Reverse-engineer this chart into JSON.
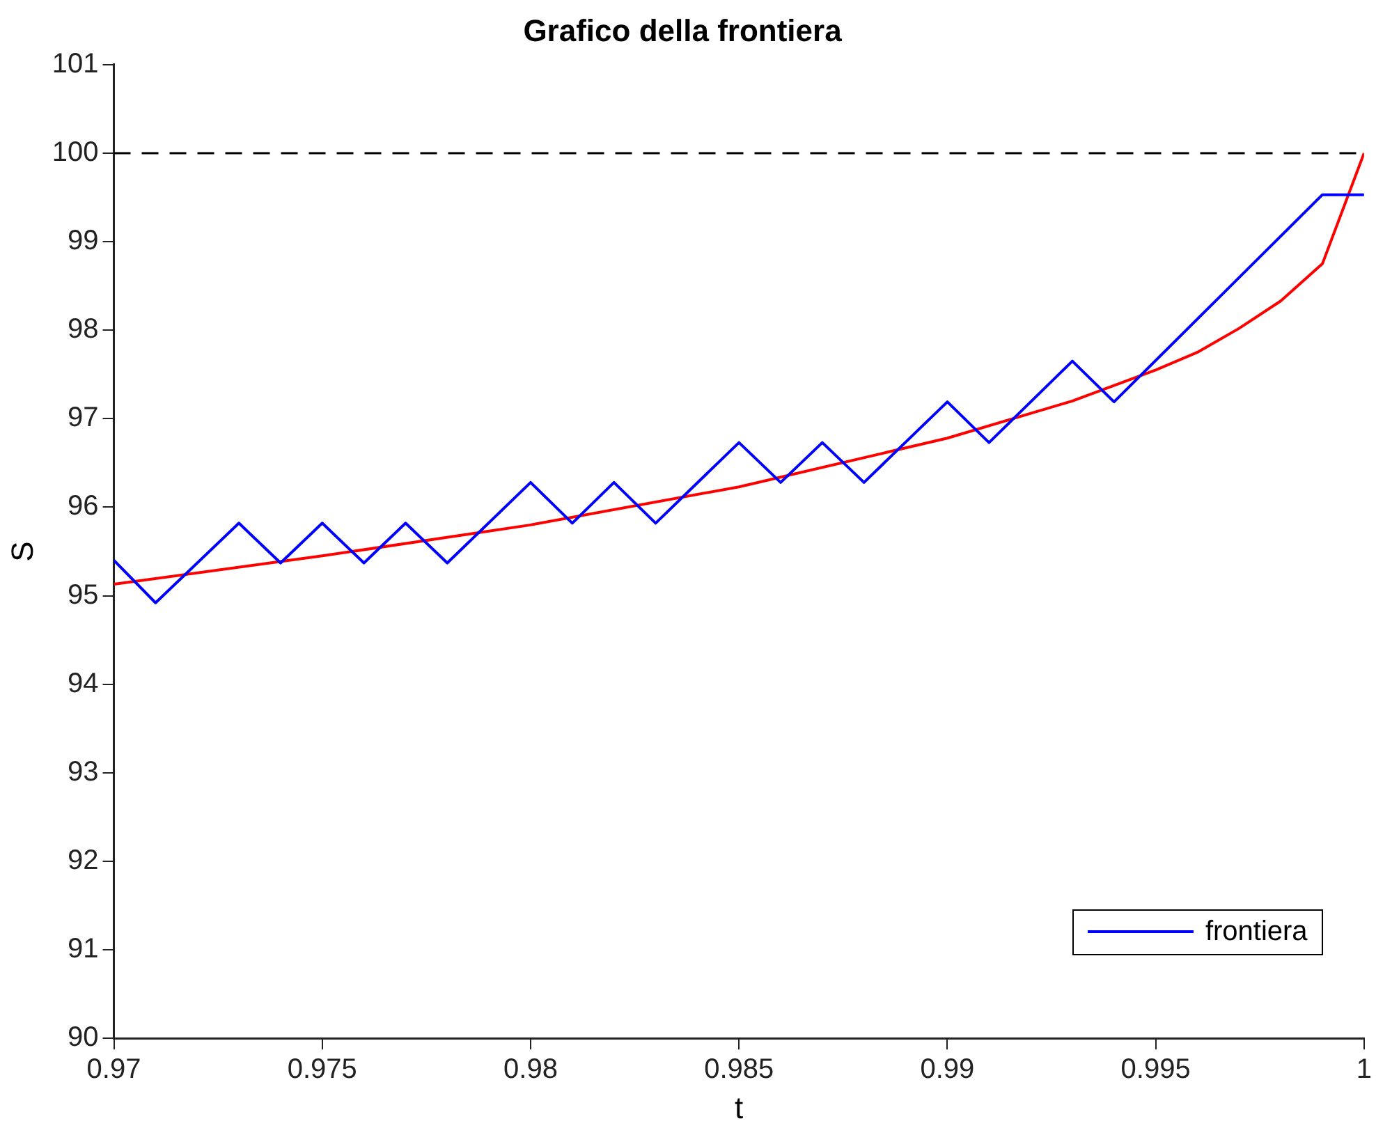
{
  "chart_data": {
    "type": "line",
    "title": "Grafico della frontiera",
    "xlabel": "t",
    "ylabel": "S",
    "xlim": [
      0.97,
      1
    ],
    "xticks": [
      0.97,
      0.975,
      0.98,
      0.985,
      0.99,
      0.995,
      1
    ],
    "ylim": [
      90,
      101
    ],
    "yticks": [
      90,
      91,
      92,
      93,
      94,
      95,
      96,
      97,
      98,
      99,
      100,
      101
    ],
    "grid": false,
    "legend": "bottom right",
    "marker": "none",
    "line_style": "solid",
    "ref_lines": [
      {
        "axis": "y",
        "value": 100,
        "color": "#000000",
        "line_style": "dashed"
      }
    ],
    "series": [
      {
        "name": "frontiera",
        "color": "#0000ff",
        "x": [
          0.97,
          0.971,
          0.973,
          0.974,
          0.975,
          0.976,
          0.977,
          0.978,
          0.98,
          0.981,
          0.982,
          0.983,
          0.985,
          0.986,
          0.987,
          0.988,
          0.99,
          0.991,
          0.993,
          0.994,
          0.999,
          1
        ],
        "values": [
          95.4,
          94.92,
          95.82,
          95.37,
          95.82,
          95.37,
          95.82,
          95.37,
          96.28,
          95.82,
          96.28,
          95.82,
          96.73,
          96.28,
          96.73,
          96.28,
          97.19,
          96.73,
          97.65,
          97.19,
          99.53,
          99.53
        ]
      },
      {
        "color": "#ff0000",
        "x": [
          0.97,
          0.975,
          0.98,
          0.985,
          0.99,
          0.993,
          0.995,
          0.996,
          0.997,
          0.998,
          0.999,
          1
        ],
        "values": [
          95.13,
          95.45,
          95.8,
          96.23,
          96.78,
          97.2,
          97.55,
          97.75,
          98.02,
          98.33,
          98.75,
          100
        ]
      }
    ]
  }
}
